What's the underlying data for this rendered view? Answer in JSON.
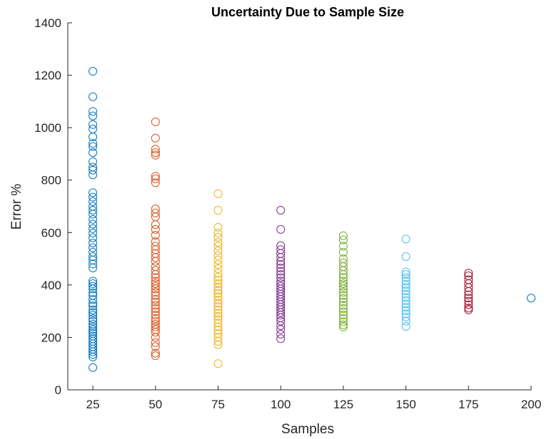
{
  "chart_data": {
    "type": "scatter",
    "title": "Uncertainty Due to Sample Size",
    "xlabel": "Samples",
    "ylabel": "Error %",
    "xlim": [
      15,
      200
    ],
    "ylim": [
      0,
      1400
    ],
    "xticks": [
      25,
      50,
      75,
      100,
      125,
      150,
      175,
      200
    ],
    "yticks": [
      0,
      200,
      400,
      600,
      800,
      1000,
      1200,
      1400
    ],
    "grid": false,
    "series": [
      {
        "x": 25,
        "color": "#0072BD",
        "values": [
          1215,
          1118,
          1062,
          1045,
          1012,
          995,
          965,
          940,
          928,
          905,
          870,
          850,
          838,
          820,
          752,
          735,
          718,
          700,
          685,
          670,
          650,
          632,
          615,
          598,
          580,
          560,
          542,
          525,
          508,
          495,
          480,
          465,
          415,
          405,
          395,
          385,
          370,
          360,
          345,
          330,
          320,
          305,
          295,
          285,
          272,
          262,
          250,
          240,
          230,
          222,
          215,
          205,
          195,
          185,
          175,
          165,
          155,
          145,
          135,
          125,
          85
        ]
      },
      {
        "x": 50,
        "color": "#D95319",
        "values": [
          1022,
          960,
          918,
          905,
          895,
          815,
          805,
          790,
          690,
          675,
          660,
          630,
          612,
          590,
          565,
          548,
          535,
          520,
          505,
          490,
          470,
          455,
          440,
          428,
          415,
          405,
          395,
          385,
          372,
          360,
          345,
          335,
          322,
          310,
          298,
          285,
          272,
          262,
          250,
          240,
          230,
          220,
          200,
          180,
          165,
          140,
          130
        ]
      },
      {
        "x": 75,
        "color": "#EDB120",
        "values": [
          748,
          685,
          620,
          598,
          582,
          562,
          548,
          530,
          512,
          495,
          478,
          462,
          445,
          430,
          418,
          405,
          392,
          380,
          368,
          355,
          342,
          330,
          318,
          305,
          292,
          280,
          268,
          255,
          240,
          228,
          215,
          200,
          185,
          172,
          100
        ]
      },
      {
        "x": 100,
        "color": "#7E2F8E",
        "values": [
          685,
          612,
          550,
          535,
          520,
          505,
          490,
          478,
          465,
          452,
          440,
          428,
          415,
          405,
          395,
          385,
          375,
          365,
          355,
          345,
          335,
          325,
          315,
          305,
          295,
          285,
          275,
          262,
          245,
          230,
          212,
          195
        ]
      },
      {
        "x": 125,
        "color": "#77AC30",
        "values": [
          588,
          572,
          548,
          525,
          500,
          485,
          470,
          455,
          440,
          428,
          415,
          405,
          395,
          385,
          372,
          360,
          348,
          335,
          322,
          310,
          298,
          285,
          272,
          260,
          248,
          240
        ]
      },
      {
        "x": 150,
        "color": "#4DBEEE",
        "values": [
          575,
          508,
          450,
          440,
          428,
          415,
          402,
          390,
          378,
          365,
          352,
          340,
          328,
          315,
          302,
          290,
          278,
          262,
          242
        ]
      },
      {
        "x": 175,
        "color": "#A2142F",
        "values": [
          445,
          435,
          420,
          405,
          390,
          375,
          362,
          350,
          338,
          325,
          312,
          305
        ]
      },
      {
        "x": 200,
        "color": "#0072BD",
        "values": [
          350
        ]
      }
    ]
  }
}
